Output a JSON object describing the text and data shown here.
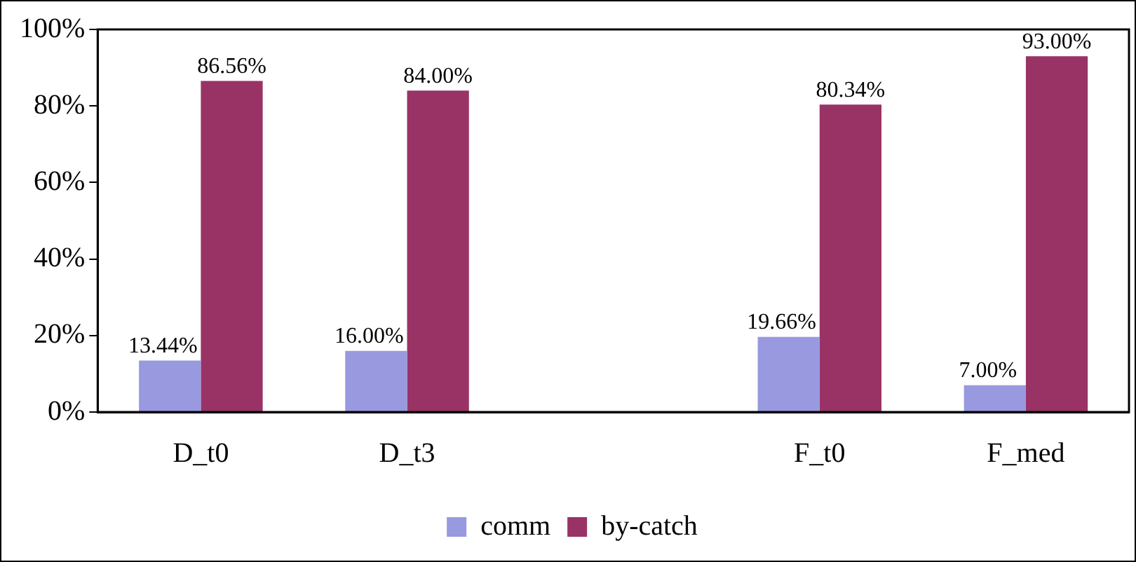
{
  "chart_data": {
    "type": "bar",
    "categories": [
      "D_t0",
      "D_t3",
      null,
      "F_t0",
      "F_med"
    ],
    "series": [
      {
        "name": "comm",
        "color": "#9999e0",
        "values": [
          13.44,
          16.0,
          null,
          19.66,
          7.0
        ],
        "value_labels": [
          "13.44%",
          "16.00%",
          null,
          "19.66%",
          "7.00%"
        ]
      },
      {
        "name": "by-catch",
        "color": "#993366",
        "values": [
          86.56,
          84.0,
          null,
          80.34,
          93.0
        ],
        "value_labels": [
          "86.56%",
          "84.00%",
          null,
          "80.34%",
          "93.00%"
        ]
      }
    ],
    "ylim": [
      0,
      100
    ],
    "yticks": [
      {
        "value": 0,
        "label": "0%"
      },
      {
        "value": 20,
        "label": "20%"
      },
      {
        "value": 40,
        "label": "40%"
      },
      {
        "value": 60,
        "label": "60%"
      },
      {
        "value": 80,
        "label": "80%"
      },
      {
        "value": 100,
        "label": "100%"
      }
    ],
    "grid": false,
    "legend": "bottom"
  }
}
